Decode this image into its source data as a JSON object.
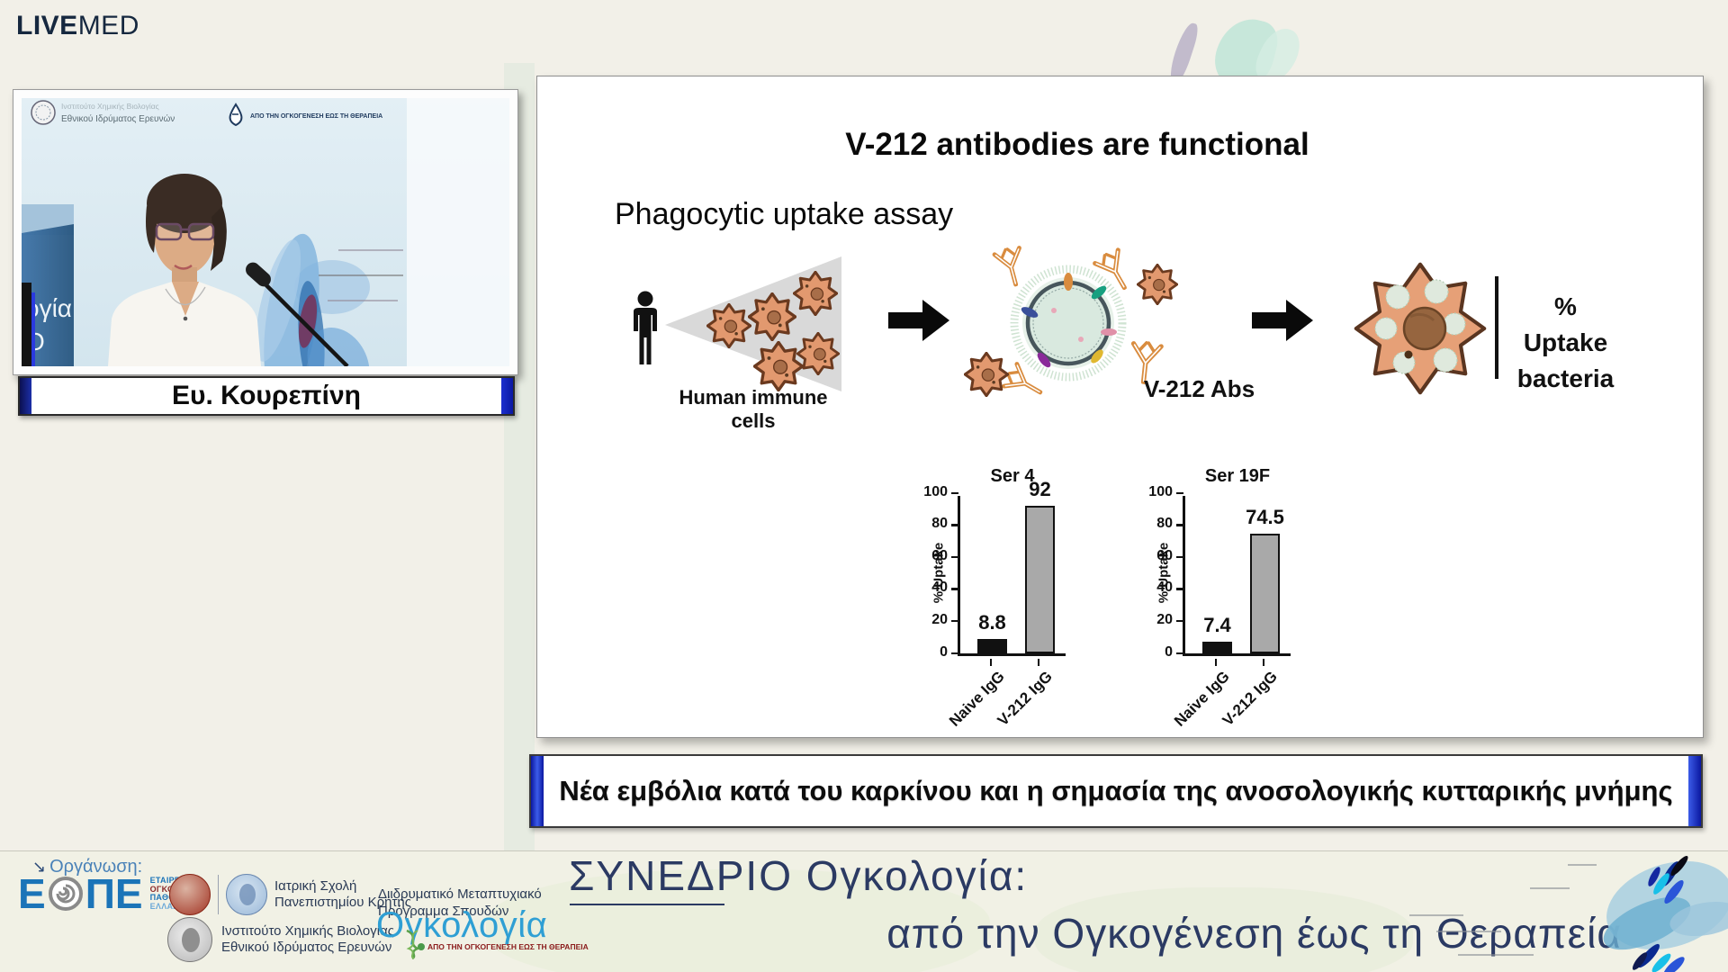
{
  "brand": {
    "live": "LIVE",
    "med": "MED"
  },
  "icons": {
    "organization_arrow": "↘"
  },
  "video": {
    "backdrop_org_line1": "Ινστιτούτο Χημικής Βιολογίας",
    "backdrop_org_line2": "Εθνικού Ιδρύματος Ερευνών",
    "backdrop_tagline": "ΑΠΟ ΤΗΝ ΟΓΚΟΓΕΝΕΣΗ ΕΩΣ ΤΗ ΘΕΡΑΠΕΙΑ",
    "banner_fragment_1": "ογία",
    "banner_fragment_2": "Ο",
    "speaker_name": "Ευ. Κουρεπίνη"
  },
  "slide": {
    "title": "V-212 antibodies are functional",
    "assay_label": "Phagocytic uptake assay",
    "human_cells_label": "Human immune cells",
    "abs_label": "V-212 Abs",
    "uptake_line1": "%",
    "uptake_line2": "Uptake",
    "uptake_line3": "bacteria"
  },
  "chart_data": [
    {
      "type": "bar",
      "title": "Ser 4",
      "categories": [
        "Naive IgG",
        "V-212 IgG"
      ],
      "values": [
        8.8,
        92
      ],
      "value_labels": [
        "8.8",
        "92"
      ],
      "ylabel": "% Uptake",
      "xlabel": "",
      "ylim": [
        0,
        100
      ],
      "yticks": [
        0,
        20,
        40,
        60,
        80,
        100
      ],
      "bar_colors": [
        "#111111",
        "#a9a9a9"
      ],
      "grid": false,
      "legend": "none"
    },
    {
      "type": "bar",
      "title": "Ser 19F",
      "categories": [
        "Naive IgG",
        "V-212 IgG"
      ],
      "values": [
        7.4,
        74.5
      ],
      "value_labels": [
        "7.4",
        "74.5"
      ],
      "ylabel": "% Uptake",
      "xlabel": "",
      "ylim": [
        0,
        100
      ],
      "yticks": [
        0,
        20,
        40,
        60,
        80,
        100
      ],
      "bar_colors": [
        "#111111",
        "#a9a9a9"
      ],
      "grid": false,
      "legend": "none"
    }
  ],
  "banner": {
    "text": "Νέα εμβόλια κατά του καρκίνου και η σημασία της ανοσολογικής κυτταρικής μνήμης"
  },
  "footer": {
    "organization_label": "Οργάνωση:",
    "eope": {
      "e": "Ε",
      "pe": "ΠΕ",
      "line1": "ΕΤΑΙΡΕΙΑ",
      "line2": "ΟΓΚΟΛΟΓΩΝ",
      "line3": "ΠΑΘΟΛΟΓΩΝ",
      "line4": "ΕΛΛΑΔΑΣ"
    },
    "med_school": {
      "line1": "Ιατρική Σχολή",
      "line2": "Πανεπιστημίου Κρήτης"
    },
    "institute": {
      "line1": "Ινστιτούτο Χημικής Βιολογίας",
      "line2": "Εθνικού Ιδρύματος Ερευνών"
    },
    "program": {
      "line1": "Διιδρυματικό Μεταπτυχιακό",
      "line2": "Πρόγραμμα Σπουδών"
    },
    "oncology_logo": {
      "text": "Ογκολογία",
      "tagline": "ΑΠΟ ΤΗΝ ΟΓΚΟΓΕΝΕΣΗ ΕΩΣ ΤΗ ΘΕΡΑΠΕΙΑ"
    },
    "congress": {
      "word1": "ΣΥΝΕΔΡΙΟ",
      "word2": " Ογκολογία:",
      "line2": "από την Ογκογένεση έως τη Θεραπεία"
    }
  },
  "colors": {
    "background": "#f2f0e8",
    "navy": "#16283f",
    "banner_blue": "#1c2fd0",
    "chart_gray": "#a9a9a9",
    "chart_black": "#111111",
    "cell_orange": "#e2996f",
    "eope_blue": "#1b74b8",
    "oncology_blue": "#2f9fd4",
    "dark_red": "#8a1a1a",
    "congress_navy": "#2b3a63"
  }
}
